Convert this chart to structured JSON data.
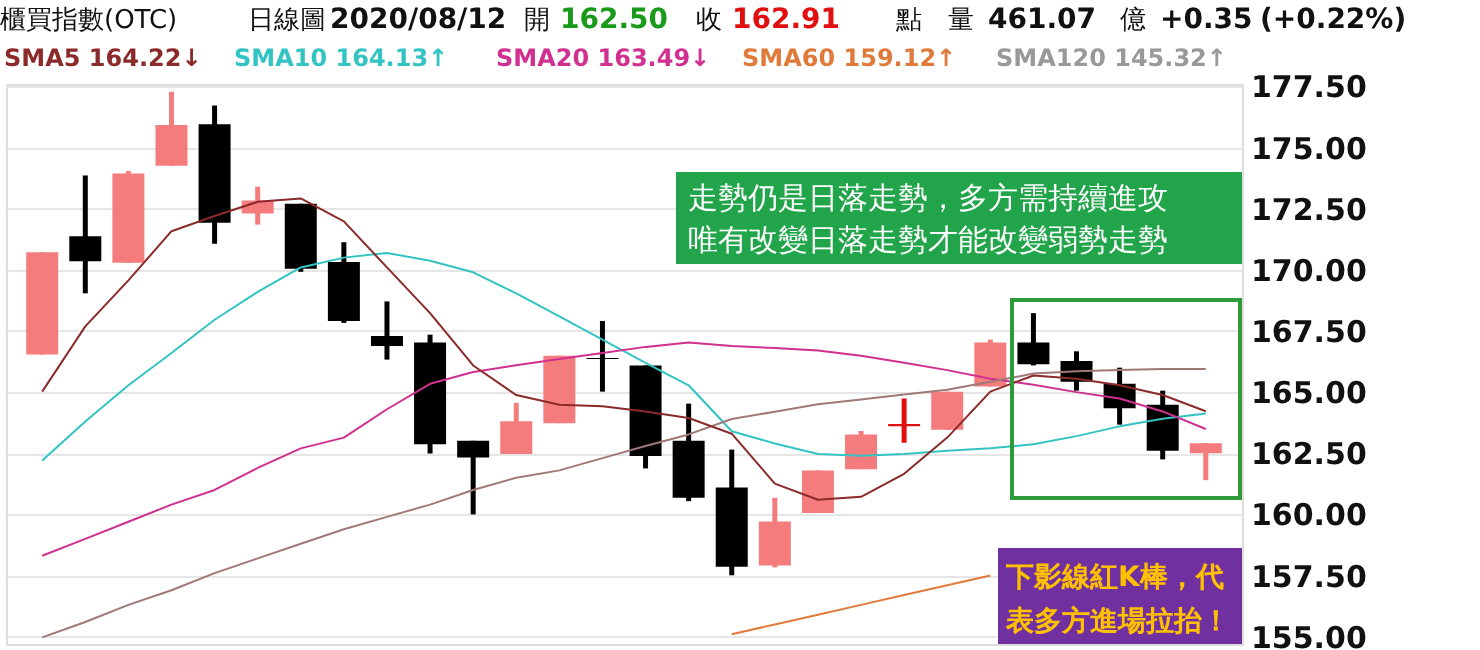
{
  "chart_data": {
    "type": "candlestick",
    "title": "櫃買指數(OTC)",
    "subtitle": "日線圖",
    "categories": [
      null,
      null,
      null,
      null,
      null,
      null,
      null,
      null,
      null,
      null,
      null,
      null,
      null,
      null,
      null,
      null,
      null,
      null,
      null,
      null,
      null,
      null,
      null,
      null,
      null,
      null,
      null,
      null
    ],
    "ohlc": [
      [
        166.54,
        170.72,
        166.54,
        170.72
      ],
      [
        171.37,
        173.86,
        169.04,
        170.35
      ],
      [
        170.29,
        174.04,
        170.29,
        173.94
      ],
      [
        174.26,
        177.28,
        174.26,
        175.92
      ],
      [
        175.95,
        176.72,
        171.07,
        171.93
      ],
      [
        172.3,
        173.4,
        171.85,
        172.84
      ],
      [
        172.7,
        172.7,
        169.92,
        170.05
      ],
      [
        170.32,
        171.13,
        167.83,
        167.91
      ],
      [
        167.29,
        168.71,
        166.33,
        166.89
      ],
      [
        167.03,
        167.35,
        162.49,
        162.87
      ],
      [
        163.01,
        163.01,
        160.0,
        162.33
      ],
      [
        162.47,
        164.56,
        162.47,
        163.81
      ],
      [
        163.73,
        166.49,
        163.73,
        166.49
      ],
      [
        166.4,
        167.91,
        165.02,
        166.35
      ],
      [
        166.09,
        166.09,
        161.88,
        162.39
      ],
      [
        163.01,
        164.53,
        160.54,
        160.68
      ],
      [
        161.1,
        162.65,
        157.51,
        157.86
      ],
      [
        157.91,
        160.68,
        157.83,
        159.71
      ],
      [
        160.06,
        161.8,
        160.06,
        161.8
      ],
      [
        161.85,
        163.41,
        161.85,
        163.27
      ],
      [
        163.6,
        164.74,
        162.93,
        163.7
      ],
      [
        163.46,
        165.02,
        163.46,
        165.02
      ],
      [
        165.23,
        167.15,
        165.23,
        167.03
      ],
      [
        167.03,
        168.23,
        166.09,
        166.14
      ],
      [
        166.27,
        166.67,
        165.06,
        165.42
      ],
      [
        165.34,
        166.0,
        163.67,
        164.34
      ],
      [
        164.48,
        165.06,
        162.25,
        162.6
      ],
      [
        162.5,
        162.91,
        161.4,
        162.91
      ]
    ],
    "colors": [
      "#f47c7c",
      "#000000",
      "#f47c7c",
      "#f47c7c",
      "#000000",
      "#f47c7c",
      "#000000",
      "#000000",
      "#000000",
      "#000000",
      "#000000",
      "#f47c7c",
      "#f47c7c",
      "#000000",
      "#000000",
      "#000000",
      "#000000",
      "#f47c7c",
      "#f47c7c",
      "#f47c7c",
      "#e01010",
      "#f47c7c",
      "#f47c7c",
      "#000000",
      "#000000",
      "#000000",
      "#000000",
      "#f47c7c"
    ],
    "series": [
      {
        "name": "SMA5 164.22↓",
        "type": "line",
        "color": "#8b2a2a",
        "values": [
          165.02,
          167.69,
          169.57,
          171.58,
          172.2,
          172.78,
          172.92,
          171.98,
          170.1,
          168.23,
          166.09,
          164.88,
          164.48,
          164.42,
          164.21,
          163.94,
          163.3,
          161.26,
          160.6,
          160.72,
          161.66,
          163.14,
          165.02,
          165.68,
          165.55,
          165.28,
          164.88,
          164.22
        ]
      },
      {
        "name": "SMA10 164.13↑",
        "type": "line",
        "color": "#33c3c3",
        "values": [
          162.2,
          163.8,
          165.28,
          166.6,
          167.96,
          169.1,
          170.1,
          170.5,
          170.69,
          170.37,
          169.9,
          169.04,
          168.1,
          167.15,
          166.2,
          165.28,
          163.4,
          162.9,
          162.47,
          162.4,
          162.47,
          162.6,
          162.7,
          162.87,
          163.2,
          163.6,
          163.91,
          164.13
        ]
      },
      {
        "name": "SMA20 163.49↓",
        "type": "line",
        "color": "#d0308f",
        "values": [
          158.31,
          159.0,
          159.7,
          160.4,
          161.0,
          161.9,
          162.7,
          163.14,
          164.3,
          165.34,
          165.82,
          166.1,
          166.35,
          166.6,
          166.85,
          167.03,
          166.89,
          166.8,
          166.7,
          166.49,
          166.2,
          165.9,
          165.55,
          165.3,
          165.0,
          164.74,
          164.21,
          163.49
        ]
      },
      {
        "type": "line",
        "color": "#a07878",
        "values": [
          154.97,
          155.6,
          156.3,
          156.9,
          157.6,
          158.2,
          158.8,
          159.39,
          159.9,
          160.4,
          161.0,
          161.5,
          161.8,
          162.3,
          162.8,
          163.27,
          163.9,
          164.2,
          164.5,
          164.7,
          164.9,
          165.1,
          165.42,
          165.76,
          165.85,
          165.9,
          165.95,
          165.95
        ]
      },
      {
        "name": "SMA60 159.12↑",
        "type": "line",
        "color": "#e07a3a",
        "values": [
          null,
          null,
          null,
          null,
          null,
          null,
          null,
          null,
          null,
          null,
          null,
          null,
          null,
          null,
          null,
          null,
          155.1,
          155.5,
          155.9,
          156.3,
          156.7,
          157.1,
          157.5,
          null,
          null,
          null,
          null,
          null
        ]
      }
    ],
    "ylim": [
      154.7,
      177.6
    ],
    "yticks": [
      {
        "value": 155,
        "label": "155.00"
      },
      {
        "value": 157.5,
        "label": "157.50"
      },
      {
        "value": 160,
        "label": "160.00"
      },
      {
        "value": 162.5,
        "label": "162.50"
      },
      {
        "value": 165,
        "label": "165.00"
      },
      {
        "value": 167.5,
        "label": "167.50"
      },
      {
        "value": 170,
        "label": "170.00"
      },
      {
        "value": 172.5,
        "label": "172.50"
      },
      {
        "value": 175,
        "label": "175.00"
      },
      {
        "value": 177.5,
        "label": "177.50"
      }
    ],
    "grid": "y",
    "tick_labels": "y",
    "legend": "top left",
    "line_style": "solid",
    "annotations": [
      "2020/08/12",
      "開",
      "162.50",
      "收",
      "162.91",
      "點",
      "量",
      "461.07",
      "億",
      "+0.35",
      "(+0.22%)",
      "SMA120 145.32↑",
      "走勢仍是日落走勢，多方需持續進攻",
      "唯有改變日落走勢才能改變弱勢走勢",
      "下影線紅K棒，代",
      "表多方進場拉抬！"
    ]
  }
}
